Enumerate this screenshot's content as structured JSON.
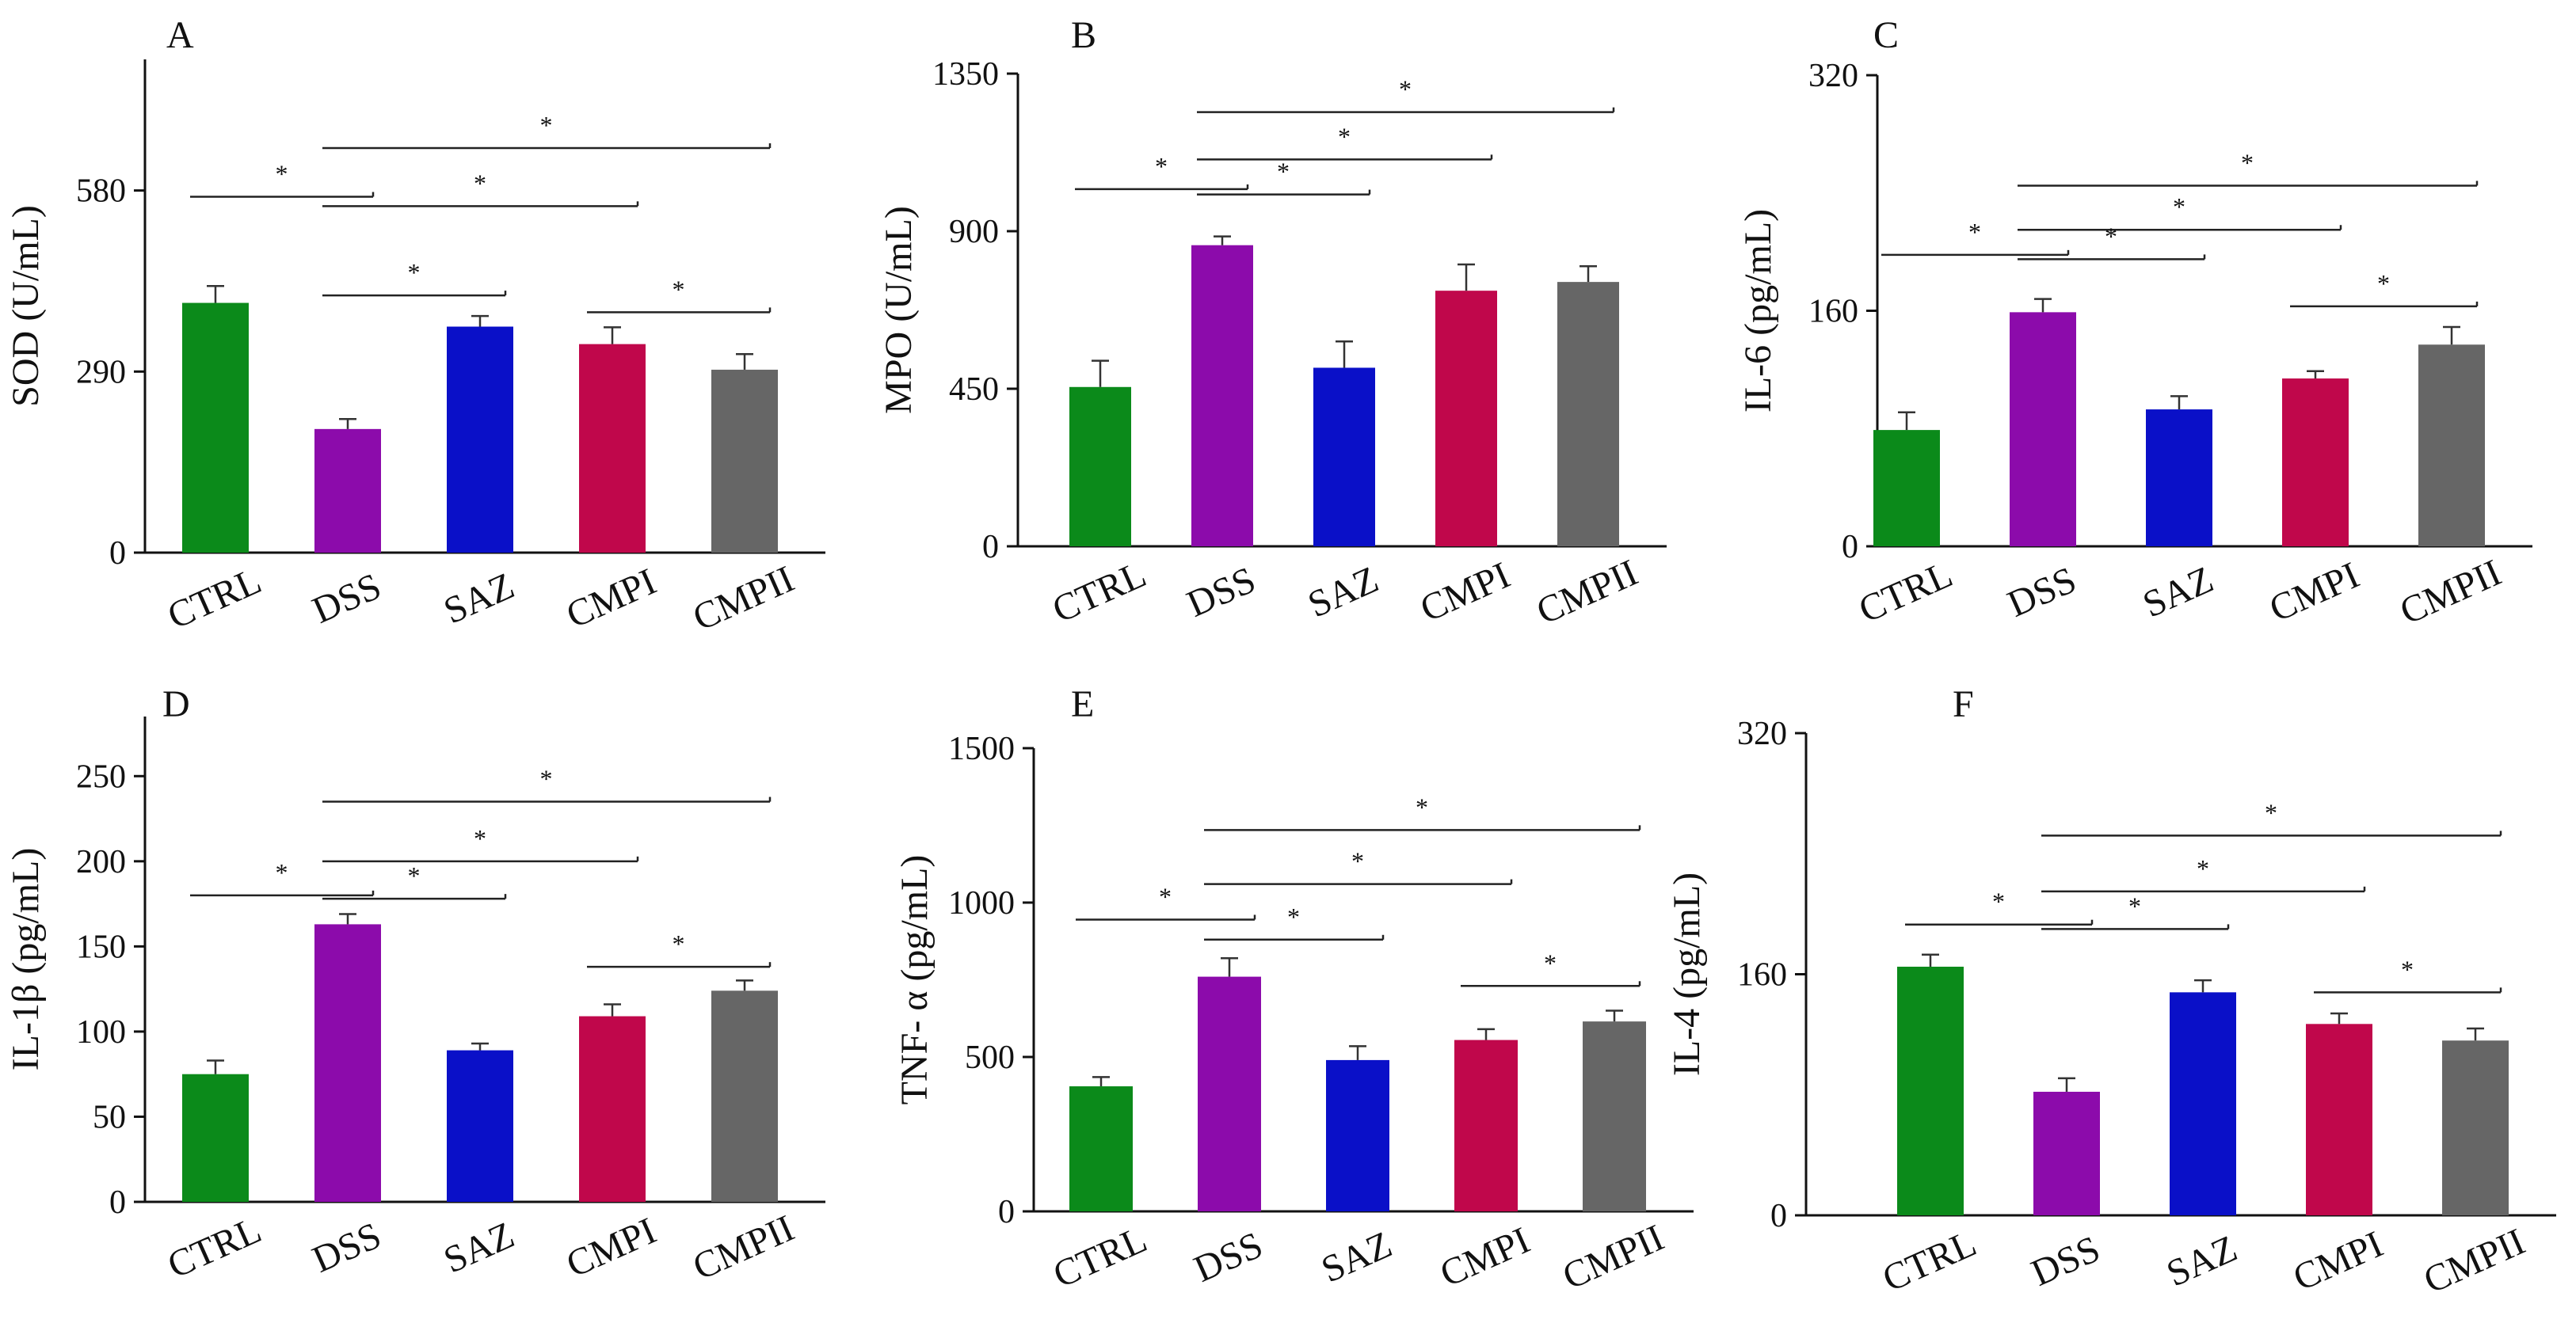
{
  "figure": {
    "groups": [
      "CTRL",
      "DSS",
      "SAZ",
      "CMPI",
      "CMPII"
    ]
  },
  "colors": {
    "CTRL": "#0b8a1a",
    "DSS": "#8c0bab",
    "SAZ": "#0a10c8",
    "CMPI": "#c0074b",
    "CMPII": "#666666",
    "axis": "#111111"
  },
  "chart_data": [
    {
      "panel": "A",
      "type": "bar",
      "ylabel": "SOD (U/mL)",
      "categories": [
        "CTRL",
        "DSS",
        "SAZ",
        "CMPI",
        "CMPII"
      ],
      "values": [
        400,
        198,
        362,
        334,
        293
      ],
      "errors": [
        27,
        16,
        17,
        27,
        25
      ],
      "ylim": [
        0,
        790
      ],
      "yticks": [
        0,
        290,
        580
      ],
      "sig": [
        {
          "from": 0,
          "to": 1,
          "level": 570,
          "label": "*"
        },
        {
          "from": 1,
          "to": 4,
          "level": 648,
          "label": "*"
        },
        {
          "from": 1,
          "to": 3,
          "level": 555,
          "label": "*"
        },
        {
          "from": 1,
          "to": 2,
          "level": 412,
          "label": "*"
        },
        {
          "from": 3,
          "to": 4,
          "level": 385,
          "label": "*"
        }
      ]
    },
    {
      "panel": "B",
      "type": "bar",
      "ylabel": "MPO (U/mL)",
      "categories": [
        "CTRL",
        "DSS",
        "SAZ",
        "CMPI",
        "CMPII"
      ],
      "values": [
        455,
        860,
        510,
        730,
        755
      ],
      "errors": [
        75,
        25,
        75,
        75,
        45
      ],
      "ylim": [
        0,
        1350
      ],
      "yticks": [
        0,
        450,
        900,
        1350
      ],
      "sig": [
        {
          "from": 0,
          "to": 1,
          "level": 1020,
          "label": "*"
        },
        {
          "from": 1,
          "to": 4,
          "level": 1240,
          "label": "*"
        },
        {
          "from": 1,
          "to": 3,
          "level": 1105,
          "label": "*"
        },
        {
          "from": 1,
          "to": 2,
          "level": 1005,
          "label": "*"
        }
      ]
    },
    {
      "panel": "C",
      "type": "bar",
      "ylabel": "IL-6 (pg/mL)",
      "categories": [
        "CTRL",
        "DSS",
        "SAZ",
        "CMPI",
        "CMPII"
      ],
      "values": [
        79,
        159,
        93,
        114,
        137
      ],
      "errors": [
        12,
        9,
        9,
        5,
        12
      ],
      "ylim": [
        0,
        320
      ],
      "yticks": [
        0,
        160,
        320
      ],
      "sig": [
        {
          "from": 0,
          "to": 1,
          "level": 198,
          "label": "*"
        },
        {
          "from": 1,
          "to": 4,
          "level": 245,
          "label": "*"
        },
        {
          "from": 1,
          "to": 3,
          "level": 215,
          "label": "*"
        },
        {
          "from": 1,
          "to": 2,
          "level": 195,
          "label": "*"
        },
        {
          "from": 3,
          "to": 4,
          "level": 163,
          "label": "*"
        }
      ]
    },
    {
      "panel": "D",
      "type": "bar",
      "ylabel": "IL-1β  (pg/mL)",
      "categories": [
        "CTRL",
        "DSS",
        "SAZ",
        "CMPI",
        "CMPII"
      ],
      "values": [
        75,
        163,
        89,
        109,
        124
      ],
      "errors": [
        8,
        6,
        4,
        7,
        6
      ],
      "ylim": [
        0,
        285
      ],
      "yticks": [
        0,
        50,
        100,
        150,
        200,
        250
      ],
      "sig": [
        {
          "from": 0,
          "to": 1,
          "level": 180,
          "label": "*"
        },
        {
          "from": 1,
          "to": 4,
          "level": 235,
          "label": "*"
        },
        {
          "from": 1,
          "to": 3,
          "level": 200,
          "label": "*"
        },
        {
          "from": 1,
          "to": 2,
          "level": 178,
          "label": "*"
        },
        {
          "from": 3,
          "to": 4,
          "level": 138,
          "label": "*"
        }
      ]
    },
    {
      "panel": "E",
      "type": "bar",
      "ylabel": "TNF- α  (pg/mL)",
      "categories": [
        "CTRL",
        "DSS",
        "SAZ",
        "CMPI",
        "CMPII"
      ],
      "values": [
        405,
        760,
        490,
        555,
        615
      ],
      "errors": [
        30,
        60,
        45,
        35,
        35
      ],
      "ylim": [
        0,
        1500
      ],
      "yticks": [
        0,
        500,
        1000,
        1500
      ],
      "sig": [
        {
          "from": 0,
          "to": 1,
          "level": 945,
          "label": "*"
        },
        {
          "from": 1,
          "to": 4,
          "level": 1235,
          "label": "*"
        },
        {
          "from": 1,
          "to": 3,
          "level": 1060,
          "label": "*"
        },
        {
          "from": 1,
          "to": 2,
          "level": 880,
          "label": "*"
        },
        {
          "from": 3,
          "to": 4,
          "level": 730,
          "label": "*"
        }
      ]
    },
    {
      "panel": "F",
      "type": "bar",
      "ylabel": "IL-4  (pg/mL)",
      "categories": [
        "CTRL",
        "DSS",
        "SAZ",
        "CMPI",
        "CMPII"
      ],
      "values": [
        165,
        82,
        148,
        127,
        116
      ],
      "errors": [
        8,
        9,
        8,
        7,
        8
      ],
      "ylim": [
        0,
        320
      ],
      "yticks": [
        0,
        160,
        320
      ],
      "sig": [
        {
          "from": 0,
          "to": 1,
          "level": 193,
          "label": "*"
        },
        {
          "from": 1,
          "to": 4,
          "level": 252,
          "label": "*"
        },
        {
          "from": 1,
          "to": 3,
          "level": 215,
          "label": "*"
        },
        {
          "from": 1,
          "to": 2,
          "level": 190,
          "label": "*"
        },
        {
          "from": 3,
          "to": 4,
          "level": 148,
          "label": "*"
        }
      ]
    }
  ]
}
